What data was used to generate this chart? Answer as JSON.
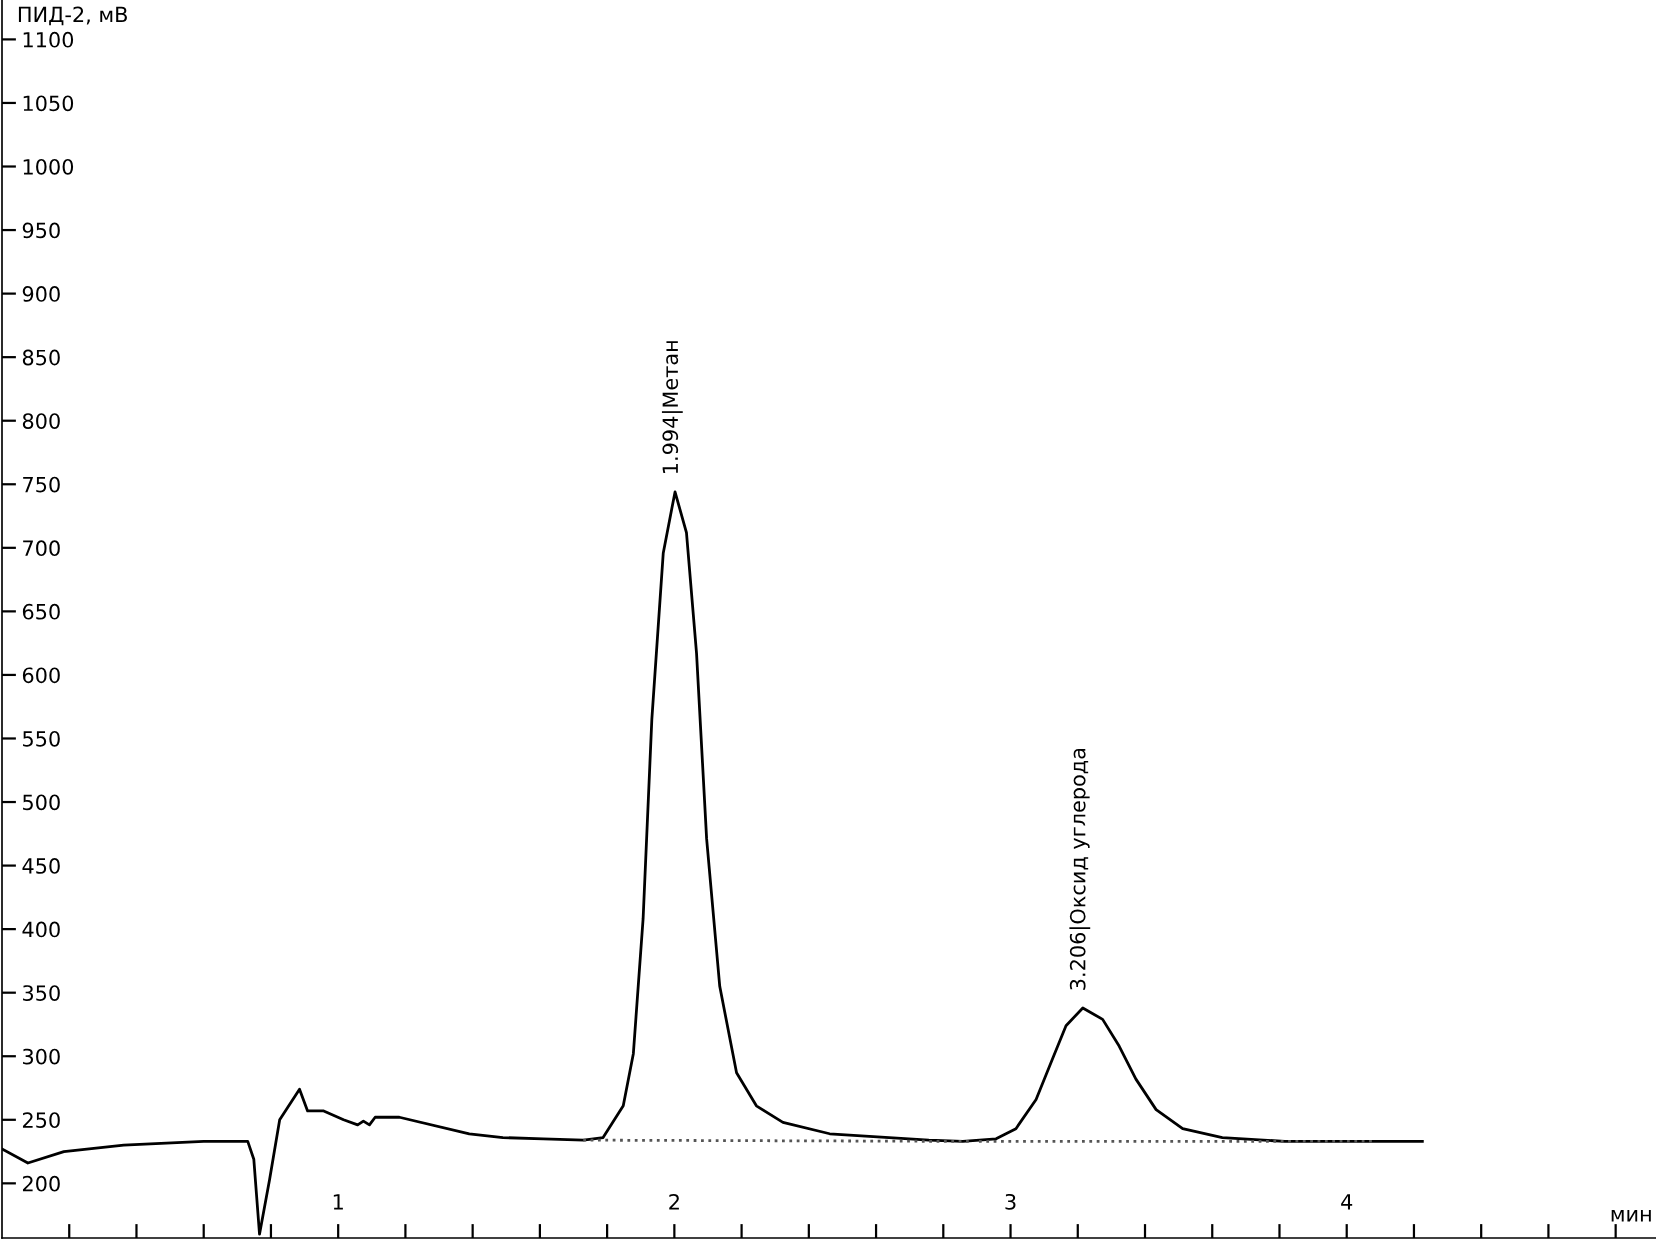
{
  "chart_data": {
    "type": "line",
    "xlabel": "мин",
    "ylabel": "ПИД-2, мВ",
    "xlim": [
      0,
      4.92
    ],
    "ylim": [
      157,
      1131
    ],
    "xticks": [
      {
        "value": 0.2,
        "label": null
      },
      {
        "value": 0.4,
        "label": null
      },
      {
        "value": 0.6,
        "label": null
      },
      {
        "value": 0.8,
        "label": null
      },
      1,
      {
        "value": 1.2,
        "label": null
      },
      {
        "value": 1.4,
        "label": null
      },
      {
        "value": 1.6,
        "label": null
      },
      {
        "value": 1.8,
        "label": null
      },
      2,
      {
        "value": 2.2,
        "label": null
      },
      {
        "value": 2.4,
        "label": null
      },
      {
        "value": 2.6,
        "label": null
      },
      {
        "value": 2.8,
        "label": null
      },
      3,
      {
        "value": 3.2,
        "label": null
      },
      {
        "value": 3.4,
        "label": null
      },
      {
        "value": 3.6,
        "label": null
      },
      {
        "value": 3.8,
        "label": null
      },
      4,
      {
        "value": 4.2,
        "label": null
      },
      {
        "value": 4.4,
        "label": null
      },
      {
        "value": 4.6,
        "label": null
      },
      {
        "value": 4.8,
        "label": null
      }
    ],
    "yticks": [
      200,
      250,
      300,
      350,
      400,
      450,
      500,
      550,
      600,
      650,
      700,
      750,
      800,
      850,
      900,
      950,
      1000,
      1050,
      1100
    ],
    "grid": false,
    "legend": false,
    "series": [
      {
        "color": "#000000",
        "line_style": "solid",
        "x": [
          0.0,
          0.077,
          0.184,
          0.362,
          0.6,
          0.731,
          0.749,
          0.766,
          0.796,
          0.826,
          0.885,
          0.909,
          0.957,
          1.016,
          1.058,
          1.075,
          1.093,
          1.11,
          1.182,
          1.39,
          1.49,
          1.61,
          1.73,
          1.788,
          1.848,
          1.878,
          1.907,
          1.933,
          1.967,
          2.002,
          2.036,
          2.066,
          2.096,
          2.135,
          2.185,
          2.244,
          2.323,
          2.462,
          2.757,
          2.858,
          2.957,
          3.016,
          3.076,
          3.125,
          3.165,
          3.215,
          3.274,
          3.323,
          3.373,
          3.433,
          3.512,
          3.63,
          3.816,
          4.225
        ],
        "values": [
          227,
          216,
          225,
          230,
          233,
          233,
          219,
          160,
          203,
          250,
          274,
          257,
          257,
          250,
          246,
          249,
          246,
          252,
          252,
          239,
          236,
          235,
          234,
          236,
          261,
          302,
          408,
          565,
          696,
          744,
          712,
          617,
          471,
          355,
          287,
          261,
          248,
          239,
          234,
          233,
          235,
          243,
          266,
          298,
          324,
          338,
          329,
          308,
          282,
          258,
          243,
          236,
          233,
          233
        ]
      },
      {
        "color": "#555555",
        "line_style": "dotted",
        "x": [
          1.729,
          2.876
        ],
        "values": [
          234,
          233
        ]
      },
      {
        "color": "#555555",
        "line_style": "dotted",
        "x": [
          2.906,
          4.082
        ],
        "values": [
          233,
          233
        ]
      }
    ],
    "annotations": [
      {
        "text": "1.994|Метан",
        "x": 1.994,
        "y": 744
      },
      {
        "text": "3.206|Оксид углерода",
        "x": 3.206,
        "y": 338
      }
    ]
  }
}
